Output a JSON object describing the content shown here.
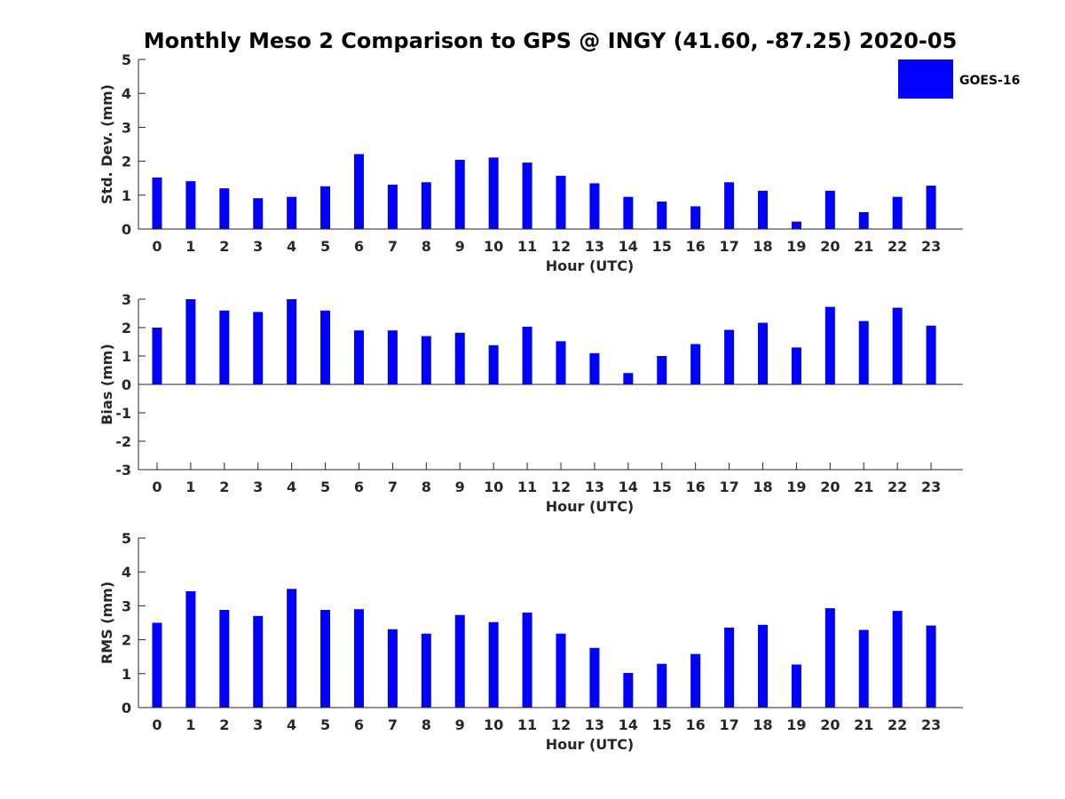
{
  "title": "Monthly Meso 2 Comparison to GPS @ INGY (41.60, -87.25) 2020-05",
  "legend": {
    "label": "GOES-16",
    "color": "#0000ff",
    "position": "top-right"
  },
  "colors": {
    "bar": "#0000ff",
    "axis": "#262626",
    "background": "#ffffff"
  },
  "chart_data": [
    {
      "type": "bar",
      "categories": [
        "0",
        "1",
        "2",
        "3",
        "4",
        "5",
        "6",
        "7",
        "8",
        "9",
        "10",
        "11",
        "12",
        "13",
        "14",
        "15",
        "16",
        "17",
        "18",
        "19",
        "20",
        "21",
        "22",
        "23"
      ],
      "values": [
        1.52,
        1.41,
        1.2,
        0.91,
        0.95,
        1.26,
        2.21,
        1.31,
        1.38,
        2.04,
        2.11,
        1.96,
        1.57,
        1.35,
        0.95,
        0.81,
        0.67,
        1.38,
        1.13,
        0.22,
        1.13,
        0.5,
        0.95,
        1.28
      ],
      "series": [
        {
          "name": "GOES-16"
        }
      ],
      "xlabel": "Hour (UTC)",
      "ylabel": "Std. Dev. (mm)",
      "ylim": [
        0,
        5
      ],
      "yticks": [
        "0",
        "1",
        "2",
        "3",
        "4",
        "5"
      ],
      "grid": false
    },
    {
      "type": "bar",
      "categories": [
        "0",
        "1",
        "2",
        "3",
        "4",
        "5",
        "6",
        "7",
        "8",
        "9",
        "10",
        "11",
        "12",
        "13",
        "14",
        "15",
        "16",
        "17",
        "18",
        "19",
        "20",
        "21",
        "22",
        "23"
      ],
      "values": [
        2.0,
        3.0,
        2.6,
        2.55,
        3.0,
        2.6,
        1.9,
        1.9,
        1.7,
        1.82,
        1.38,
        2.03,
        1.52,
        1.1,
        0.4,
        1.0,
        1.42,
        1.92,
        2.17,
        1.3,
        2.73,
        2.23,
        2.7,
        2.07
      ],
      "series": [
        {
          "name": "GOES-16"
        }
      ],
      "xlabel": "Hour (UTC)",
      "ylabel": "Bias (mm)",
      "ylim": [
        -3,
        3
      ],
      "yticks": [
        "-3",
        "-2",
        "-1",
        "0",
        "1",
        "2",
        "3"
      ],
      "grid": false
    },
    {
      "type": "bar",
      "categories": [
        "0",
        "1",
        "2",
        "3",
        "4",
        "5",
        "6",
        "7",
        "8",
        "9",
        "10",
        "11",
        "12",
        "13",
        "14",
        "15",
        "16",
        "17",
        "18",
        "19",
        "20",
        "21",
        "22",
        "23"
      ],
      "values": [
        2.5,
        3.43,
        2.88,
        2.7,
        3.5,
        2.88,
        2.9,
        2.31,
        2.18,
        2.73,
        2.52,
        2.8,
        2.18,
        1.76,
        1.02,
        1.29,
        1.58,
        2.36,
        2.44,
        1.27,
        2.93,
        2.29,
        2.85,
        2.42
      ],
      "series": [
        {
          "name": "GOES-16"
        }
      ],
      "xlabel": "Hour (UTC)",
      "ylabel": "RMS (mm)",
      "ylim": [
        0,
        5
      ],
      "yticks": [
        "0",
        "1",
        "2",
        "3",
        "4",
        "5"
      ],
      "grid": false
    }
  ]
}
